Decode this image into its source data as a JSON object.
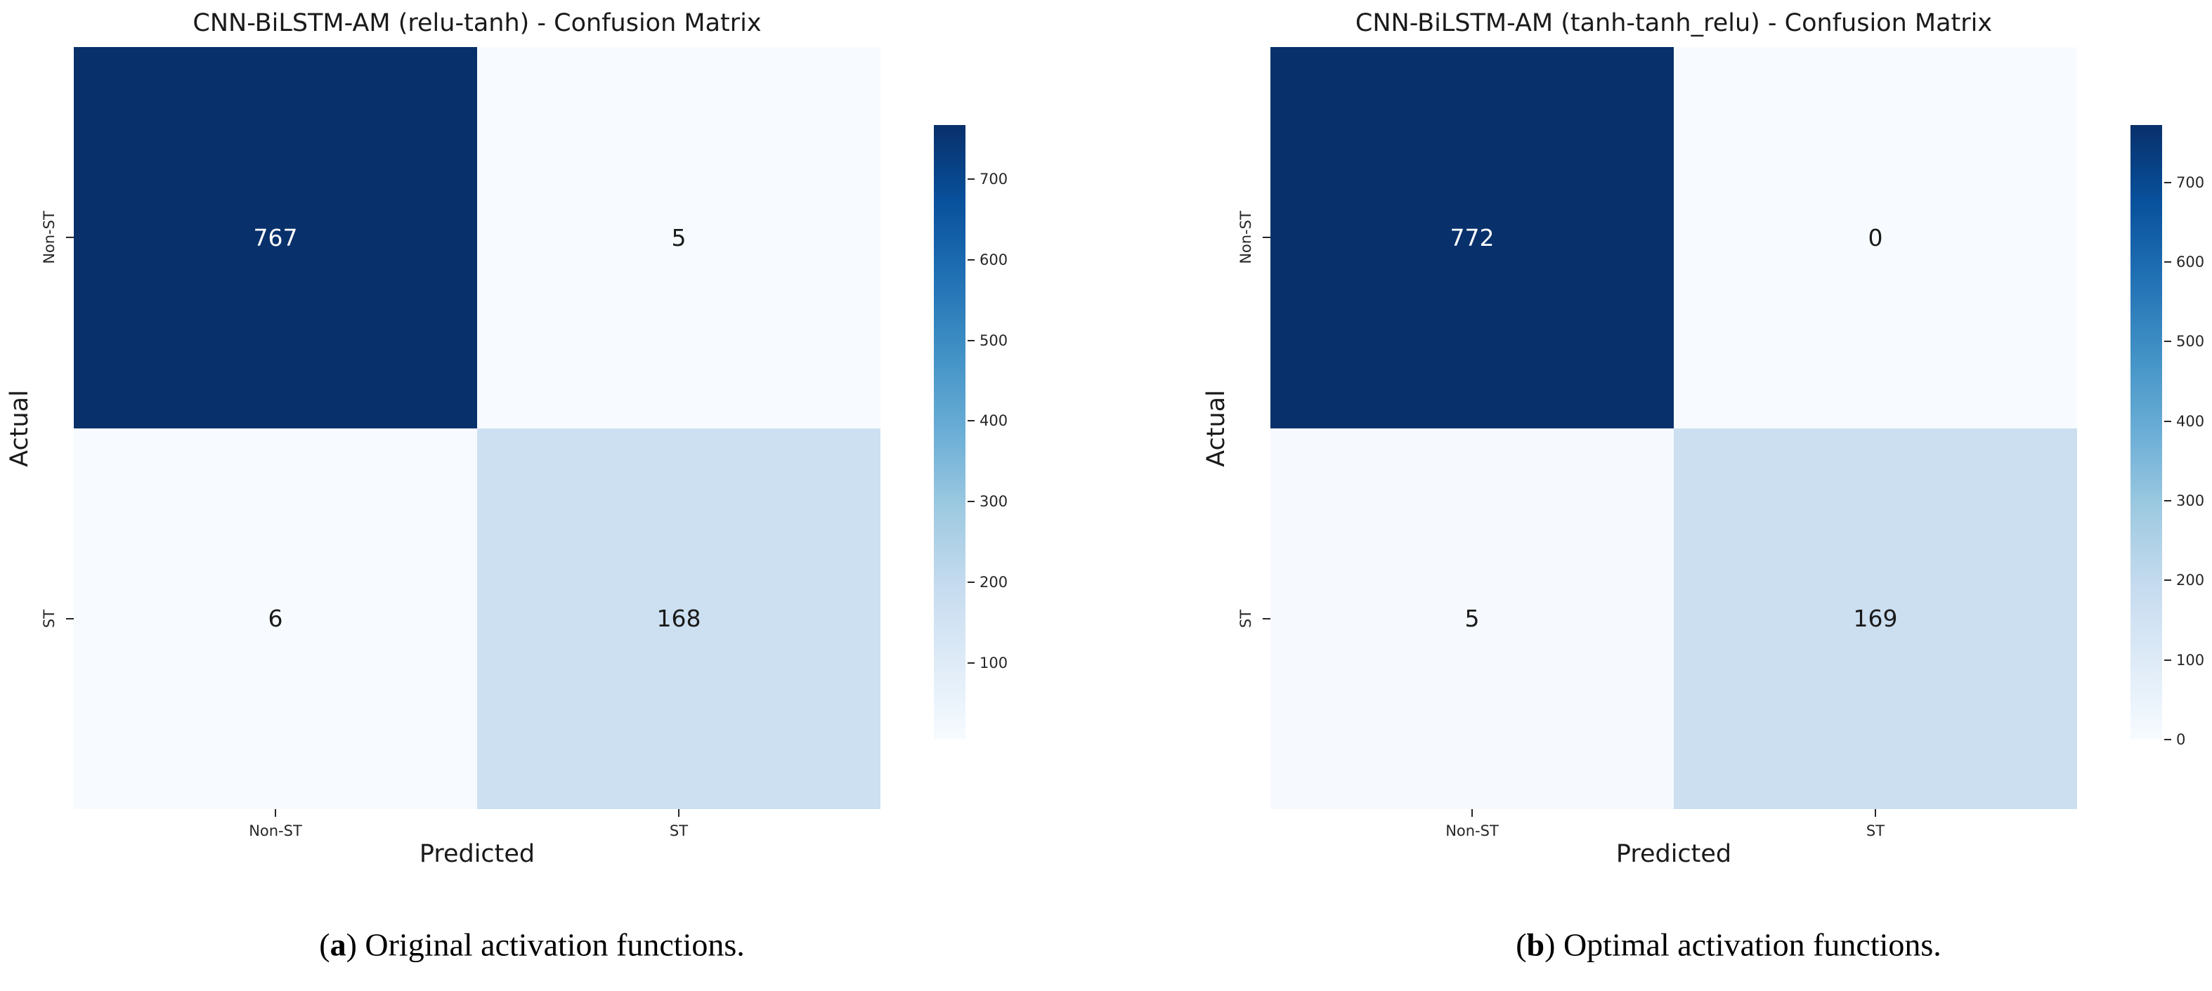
{
  "figure": {
    "colors": {
      "background": "#ffffff",
      "text_dark": "#1a1a1a",
      "tick": "#262626",
      "cell_text_on_dark": "#ffffff",
      "cell_text_on_light": "#1a1a1a",
      "colormap_name": "Blues",
      "colormap_anchors": [
        [
          0.0,
          "#f7fbff"
        ],
        [
          0.125,
          "#deebf7"
        ],
        [
          0.25,
          "#c6dbef"
        ],
        [
          0.375,
          "#9ecae1"
        ],
        [
          0.5,
          "#6baed6"
        ],
        [
          0.625,
          "#4292c6"
        ],
        [
          0.75,
          "#2171b5"
        ],
        [
          0.875,
          "#08519c"
        ],
        [
          1.0,
          "#08306b"
        ]
      ]
    },
    "panels": [
      {
        "title": "CNN-BiLSTM-AM (relu-tanh) - Confusion Matrix",
        "xlabel": "Predicted",
        "ylabel": "Actual",
        "x_ticklabels": [
          "Non-ST",
          "ST"
        ],
        "y_ticklabels": [
          "Non-ST",
          "ST"
        ],
        "matrix": [
          [
            767,
            5
          ],
          [
            6,
            168
          ]
        ],
        "vmin": 5,
        "vmax": 767,
        "colorbar_ticks": [
          700,
          600,
          500,
          400,
          300,
          200,
          100
        ],
        "caption": {
          "pre": "(",
          "marker": "a",
          "post": ") ",
          "text": "Original activation functions."
        }
      },
      {
        "title": "CNN-BiLSTM-AM (tanh-tanh_relu) - Confusion Matrix",
        "xlabel": "Predicted",
        "ylabel": "Actual",
        "x_ticklabels": [
          "Non-ST",
          "ST"
        ],
        "y_ticklabels": [
          "Non-ST",
          "ST"
        ],
        "matrix": [
          [
            772,
            0
          ],
          [
            5,
            169
          ]
        ],
        "vmin": 0,
        "vmax": 772,
        "colorbar_ticks": [
          700,
          600,
          500,
          400,
          300,
          200,
          100,
          0
        ],
        "caption": {
          "pre": "(",
          "marker": "b",
          "post": ") ",
          "text": "Optimal activation functions."
        }
      }
    ]
  },
  "chart_data": [
    {
      "type": "heatmap",
      "title": "CNN-BiLSTM-AM (relu-tanh) - Confusion Matrix",
      "xlabel": "Predicted",
      "ylabel": "Actual",
      "x_categories": [
        "Non-ST",
        "ST"
      ],
      "y_categories": [
        "Non-ST",
        "ST"
      ],
      "values": [
        [
          767,
          5
        ],
        [
          6,
          168
        ]
      ],
      "colormap": "Blues",
      "color_range": [
        5,
        767
      ],
      "colorbar_ticks": [
        100,
        200,
        300,
        400,
        500,
        600,
        700
      ],
      "legend_position": "right-colorbar",
      "grid": false,
      "caption": "(a) Original activation functions."
    },
    {
      "type": "heatmap",
      "title": "CNN-BiLSTM-AM (tanh-tanh_relu) - Confusion Matrix",
      "xlabel": "Predicted",
      "ylabel": "Actual",
      "x_categories": [
        "Non-ST",
        "ST"
      ],
      "y_categories": [
        "Non-ST",
        "ST"
      ],
      "values": [
        [
          772,
          0
        ],
        [
          5,
          169
        ]
      ],
      "colormap": "Blues",
      "color_range": [
        0,
        772
      ],
      "colorbar_ticks": [
        0,
        100,
        200,
        300,
        400,
        500,
        600,
        700
      ],
      "legend_position": "right-colorbar",
      "grid": false,
      "caption": "(b) Optimal activation functions."
    }
  ]
}
